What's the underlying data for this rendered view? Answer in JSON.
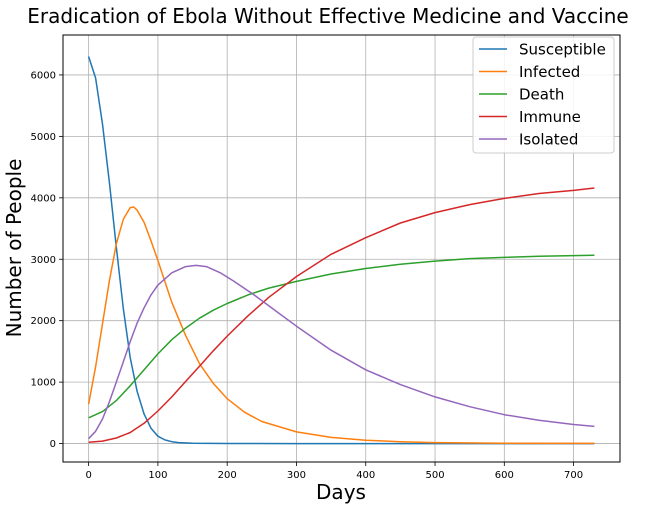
{
  "chart_data": {
    "type": "line",
    "title": "Eradication of Ebola Without Effective Medicine and Vaccine",
    "xlabel": "Days",
    "ylabel": "Number of People",
    "xlim": [
      -37,
      767
    ],
    "ylim": [
      -300,
      6650
    ],
    "xticks": [
      0,
      100,
      200,
      300,
      400,
      500,
      600,
      700
    ],
    "yticks": [
      0,
      1000,
      2000,
      3000,
      4000,
      5000,
      6000
    ],
    "grid": true,
    "legend_position": "top-right",
    "series": [
      {
        "name": "Susceptible",
        "color": "#1f77b4",
        "points": [
          [
            0,
            6300
          ],
          [
            10,
            5950
          ],
          [
            20,
            5200
          ],
          [
            30,
            4250
          ],
          [
            40,
            3200
          ],
          [
            50,
            2200
          ],
          [
            60,
            1400
          ],
          [
            70,
            850
          ],
          [
            80,
            480
          ],
          [
            90,
            250
          ],
          [
            100,
            120
          ],
          [
            110,
            60
          ],
          [
            120,
            30
          ],
          [
            130,
            15
          ],
          [
            150,
            5
          ],
          [
            175,
            2
          ],
          [
            200,
            1
          ],
          [
            300,
            0
          ],
          [
            400,
            0
          ],
          [
            500,
            0
          ],
          [
            600,
            0
          ],
          [
            730,
            0
          ]
        ]
      },
      {
        "name": "Infected",
        "color": "#ff7f0e",
        "points": [
          [
            0,
            640
          ],
          [
            10,
            1250
          ],
          [
            20,
            1950
          ],
          [
            30,
            2650
          ],
          [
            40,
            3250
          ],
          [
            50,
            3650
          ],
          [
            60,
            3840
          ],
          [
            65,
            3850
          ],
          [
            70,
            3800
          ],
          [
            80,
            3600
          ],
          [
            90,
            3300
          ],
          [
            100,
            2980
          ],
          [
            120,
            2300
          ],
          [
            140,
            1760
          ],
          [
            160,
            1300
          ],
          [
            180,
            980
          ],
          [
            200,
            730
          ],
          [
            225,
            510
          ],
          [
            250,
            360
          ],
          [
            300,
            190
          ],
          [
            350,
            100
          ],
          [
            400,
            55
          ],
          [
            450,
            30
          ],
          [
            500,
            15
          ],
          [
            600,
            5
          ],
          [
            730,
            2
          ]
        ]
      },
      {
        "name": "Death",
        "color": "#2ca02c",
        "points": [
          [
            0,
            420
          ],
          [
            20,
            520
          ],
          [
            40,
            700
          ],
          [
            60,
            940
          ],
          [
            80,
            1200
          ],
          [
            100,
            1460
          ],
          [
            120,
            1690
          ],
          [
            140,
            1880
          ],
          [
            160,
            2040
          ],
          [
            180,
            2170
          ],
          [
            200,
            2280
          ],
          [
            230,
            2420
          ],
          [
            260,
            2530
          ],
          [
            300,
            2640
          ],
          [
            350,
            2760
          ],
          [
            400,
            2850
          ],
          [
            450,
            2920
          ],
          [
            500,
            2970
          ],
          [
            550,
            3010
          ],
          [
            600,
            3030
          ],
          [
            650,
            3050
          ],
          [
            700,
            3060
          ],
          [
            730,
            3065
          ]
        ]
      },
      {
        "name": "Immune",
        "color": "#d62728",
        "points": [
          [
            0,
            20
          ],
          [
            20,
            40
          ],
          [
            40,
            90
          ],
          [
            60,
            180
          ],
          [
            80,
            330
          ],
          [
            100,
            530
          ],
          [
            120,
            760
          ],
          [
            140,
            1010
          ],
          [
            160,
            1260
          ],
          [
            180,
            1510
          ],
          [
            200,
            1750
          ],
          [
            230,
            2080
          ],
          [
            260,
            2380
          ],
          [
            300,
            2720
          ],
          [
            350,
            3080
          ],
          [
            400,
            3350
          ],
          [
            450,
            3590
          ],
          [
            500,
            3760
          ],
          [
            550,
            3890
          ],
          [
            600,
            3990
          ],
          [
            650,
            4070
          ],
          [
            700,
            4120
          ],
          [
            730,
            4160
          ]
        ]
      },
      {
        "name": "Isolated",
        "color": "#9467bd",
        "points": [
          [
            0,
            80
          ],
          [
            10,
            200
          ],
          [
            20,
            400
          ],
          [
            30,
            680
          ],
          [
            40,
            1000
          ],
          [
            50,
            1330
          ],
          [
            60,
            1660
          ],
          [
            70,
            1960
          ],
          [
            80,
            2210
          ],
          [
            90,
            2420
          ],
          [
            100,
            2580
          ],
          [
            120,
            2780
          ],
          [
            140,
            2880
          ],
          [
            155,
            2900
          ],
          [
            170,
            2880
          ],
          [
            190,
            2780
          ],
          [
            210,
            2640
          ],
          [
            240,
            2410
          ],
          [
            270,
            2160
          ],
          [
            300,
            1910
          ],
          [
            350,
            1520
          ],
          [
            400,
            1200
          ],
          [
            450,
            960
          ],
          [
            500,
            760
          ],
          [
            550,
            600
          ],
          [
            600,
            470
          ],
          [
            650,
            380
          ],
          [
            700,
            310
          ],
          [
            730,
            280
          ]
        ]
      }
    ]
  }
}
